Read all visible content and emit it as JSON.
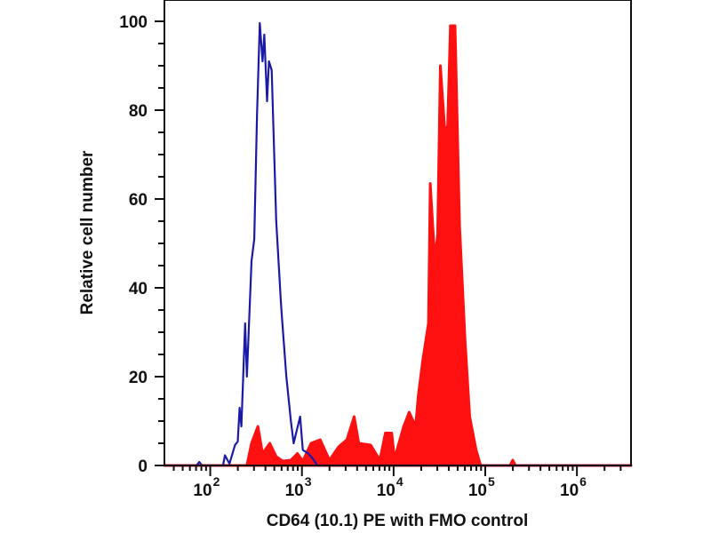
{
  "chart_data": {
    "type": "line",
    "title": "",
    "xlabel": "CD64 (10.1) PE with FMO control",
    "ylabel": "Relative cell number",
    "xscale": "log",
    "xlim_log10": [
      1.5,
      6.59
    ],
    "ylim": [
      0,
      100
    ],
    "yticks": [
      0,
      20,
      40,
      60,
      80,
      100
    ],
    "xticks": [
      {
        "base": "10",
        "exp": "2"
      },
      {
        "base": "10",
        "exp": "3"
      },
      {
        "base": "10",
        "exp": "4"
      },
      {
        "base": "10",
        "exp": "5"
      },
      {
        "base": "10",
        "exp": "6"
      }
    ],
    "grid": false,
    "series": [
      {
        "name": "FMO control",
        "color": "#1a1aa6",
        "style": "line",
        "points_log10x_y": [
          [
            1.5,
            0
          ],
          [
            1.85,
            0
          ],
          [
            1.88,
            0.8
          ],
          [
            1.91,
            0
          ],
          [
            2.14,
            0
          ],
          [
            2.16,
            2.3
          ],
          [
            2.21,
            0.4
          ],
          [
            2.27,
            4.6
          ],
          [
            2.3,
            5.4
          ],
          [
            2.32,
            13
          ],
          [
            2.34,
            8.8
          ],
          [
            2.38,
            32
          ],
          [
            2.4,
            20
          ],
          [
            2.45,
            46
          ],
          [
            2.48,
            51
          ],
          [
            2.51,
            79
          ],
          [
            2.54,
            99.6
          ],
          [
            2.57,
            91
          ],
          [
            2.59,
            97
          ],
          [
            2.62,
            82
          ],
          [
            2.64,
            91
          ],
          [
            2.67,
            89
          ],
          [
            2.72,
            55
          ],
          [
            2.77,
            37
          ],
          [
            2.78,
            34
          ],
          [
            2.83,
            20
          ],
          [
            2.88,
            10
          ],
          [
            2.91,
            5
          ],
          [
            2.98,
            11
          ],
          [
            3.01,
            3.5
          ],
          [
            3.07,
            2.7
          ],
          [
            3.12,
            1.5
          ],
          [
            3.17,
            0
          ],
          [
            6.59,
            0
          ]
        ]
      },
      {
        "name": "CD64 (10.1) PE",
        "color": "#ff1010",
        "style": "filled",
        "points_log10x_y": [
          [
            1.5,
            0
          ],
          [
            2.4,
            0
          ],
          [
            2.45,
            5
          ],
          [
            2.52,
            8.8
          ],
          [
            2.57,
            2.7
          ],
          [
            2.65,
            5
          ],
          [
            2.72,
            2
          ],
          [
            2.79,
            1
          ],
          [
            2.88,
            1.2
          ],
          [
            2.95,
            2.7
          ],
          [
            3.01,
            1
          ],
          [
            3.1,
            5
          ],
          [
            3.2,
            5.8
          ],
          [
            3.3,
            1.2
          ],
          [
            3.4,
            4.2
          ],
          [
            3.49,
            5.8
          ],
          [
            3.57,
            11
          ],
          [
            3.62,
            5
          ],
          [
            3.75,
            4.6
          ],
          [
            3.85,
            1.2
          ],
          [
            3.91,
            7.3
          ],
          [
            3.98,
            7.3
          ],
          [
            4.01,
            1.5
          ],
          [
            4.11,
            8.8
          ],
          [
            4.17,
            12
          ],
          [
            4.24,
            8.8
          ],
          [
            4.27,
            15.8
          ],
          [
            4.32,
            24
          ],
          [
            4.38,
            32
          ],
          [
            4.4,
            63.5
          ],
          [
            4.45,
            46
          ],
          [
            4.48,
            52
          ],
          [
            4.51,
            90
          ],
          [
            4.56,
            75
          ],
          [
            4.59,
            76.5
          ],
          [
            4.62,
            99
          ],
          [
            4.67,
            99
          ],
          [
            4.72,
            54
          ],
          [
            4.78,
            28
          ],
          [
            4.83,
            11
          ],
          [
            4.9,
            3.5
          ],
          [
            4.95,
            0
          ],
          [
            5.27,
            0
          ],
          [
            5.3,
            1.2
          ],
          [
            5.33,
            0
          ],
          [
            6.59,
            0
          ]
        ]
      }
    ]
  }
}
